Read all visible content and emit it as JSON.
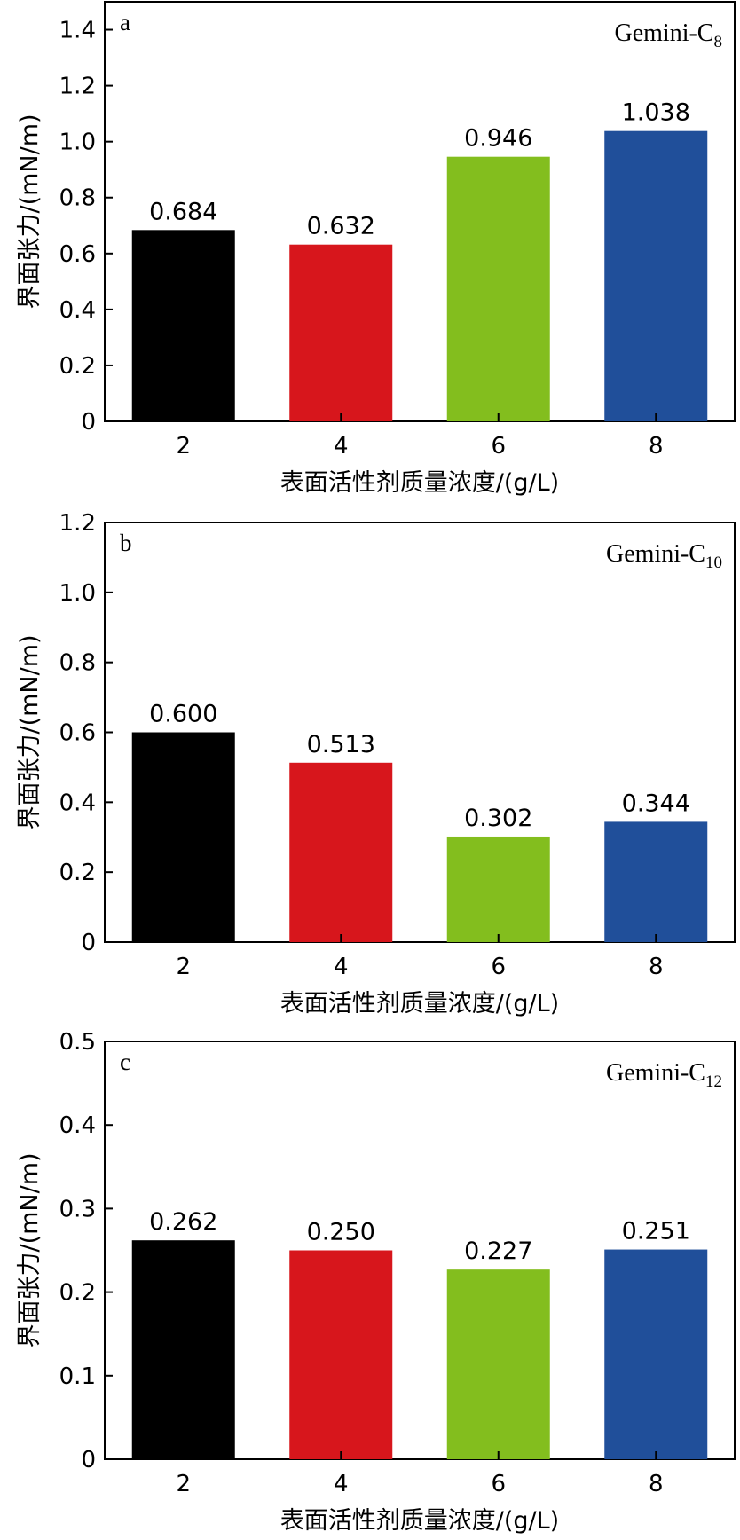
{
  "colors": [
    "#000000",
    "#d7161c",
    "#83be1e",
    "#204f9a"
  ],
  "chart_data": [
    {
      "type": "bar",
      "panel": "a",
      "series_name": "Gemini-C",
      "series_subscript": "8",
      "categories": [
        "2",
        "4",
        "6",
        "8"
      ],
      "values": [
        0.684,
        0.632,
        0.946,
        1.038
      ],
      "value_labels": [
        "0.684",
        "0.632",
        "0.946",
        "1.038"
      ],
      "ylim": [
        0,
        1.5
      ],
      "yticks": [
        "0",
        "0.2",
        "0.4",
        "0.6",
        "0.8",
        "1.0",
        "1.2",
        "1.4"
      ],
      "ylabel": "界面张力/(mN/m)",
      "xlabel": "表面活性剂质量浓度/(g/L)"
    },
    {
      "type": "bar",
      "panel": "b",
      "series_name": "Gemini-C",
      "series_subscript": "10",
      "categories": [
        "2",
        "4",
        "6",
        "8"
      ],
      "values": [
        0.6,
        0.513,
        0.302,
        0.344
      ],
      "value_labels": [
        "0.600",
        "0.513",
        "0.302",
        "0.344"
      ],
      "ylim": [
        0,
        1.2
      ],
      "yticks": [
        "0",
        "0.2",
        "0.4",
        "0.6",
        "0.8",
        "1.0",
        "1.2"
      ],
      "ylabel": "界面张力/(mN/m)",
      "xlabel": "表面活性剂质量浓度/(g/L)"
    },
    {
      "type": "bar",
      "panel": "c",
      "series_name": "Gemini-C",
      "series_subscript": "12",
      "categories": [
        "2",
        "4",
        "6",
        "8"
      ],
      "values": [
        0.262,
        0.25,
        0.227,
        0.251
      ],
      "value_labels": [
        "0.262",
        "0.250",
        "0.227",
        "0.251"
      ],
      "ylim": [
        0,
        0.5
      ],
      "yticks": [
        "0",
        "0.1",
        "0.2",
        "0.3",
        "0.4",
        "0.5"
      ],
      "ylabel": "界面张力/(mN/m)",
      "xlabel": "表面活性剂质量浓度/(g/L)"
    }
  ]
}
